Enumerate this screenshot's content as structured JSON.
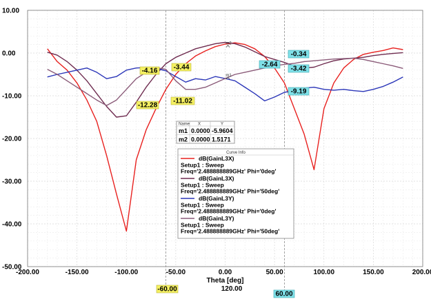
{
  "chart_data": {
    "type": "line",
    "xlabel": "Theta [deg]",
    "ylabel": "",
    "xlim": [
      -200,
      200
    ],
    "ylim": [
      -50,
      10
    ],
    "x_ticks": [
      "-200.00",
      "-150.00",
      "-100.00",
      "-50.00",
      "0.00",
      "50.00",
      "100.00",
      "150.00",
      "200.00"
    ],
    "y_ticks": [
      "10.00",
      "0.00",
      "-10.00",
      "-20.00",
      "-30.00",
      "-40.00",
      "-50.00"
    ],
    "grid": true,
    "series": [
      {
        "name": "dB(GainL3X)",
        "setup": "Setup1 : Sweep",
        "params": "Freq='2.488888889GHz' Phi='0deg'",
        "color": "#e8201e",
        "x": [
          -180,
          -170,
          -160,
          -150,
          -140,
          -130,
          -120,
          -110,
          -100,
          -90,
          -80,
          -70,
          -60,
          -50,
          -40,
          -30,
          -20,
          -10,
          0,
          10,
          20,
          30,
          40,
          50,
          60,
          70,
          80,
          90,
          100,
          110,
          120,
          130,
          140,
          150,
          160,
          170,
          180
        ],
        "values": [
          1,
          -2,
          -4,
          -7,
          -11,
          -16,
          -24,
          -33,
          -41.7,
          -25,
          -18,
          -13,
          -8.5,
          -5,
          -2.5,
          -0.7,
          0.5,
          1.5,
          2.1,
          2.4,
          2.0,
          1.0,
          -0.8,
          -3.5,
          -7,
          -13,
          -19,
          -27.3,
          -13,
          -7,
          -3.5,
          -1.5,
          -0.3,
          0.2,
          0.6,
          1.2,
          0.8
        ]
      },
      {
        "name": "dB(GainL3X)",
        "setup": "Setup1 : Sweep",
        "params": "Freq='2.488888889GHz' Phi='50deg'",
        "color": "#6e2b4f",
        "x": [
          -180,
          -170,
          -160,
          -150,
          -140,
          -130,
          -120,
          -110,
          -100,
          -90,
          -80,
          -70,
          -60,
          -50,
          -40,
          -30,
          -20,
          -10,
          0,
          10,
          20,
          30,
          40,
          50,
          60,
          70,
          80,
          90,
          100,
          110,
          120,
          130,
          140,
          150,
          160,
          170,
          180
        ],
        "values": [
          0.2,
          -0.5,
          -2,
          -4,
          -6.5,
          -9.5,
          -12.5,
          -15,
          -14.7,
          -11.5,
          -8,
          -5,
          -2.5,
          -1,
          0,
          1,
          1.6,
          2.2,
          2.5,
          2.2,
          1.4,
          0.3,
          -0.8,
          -1.5,
          -2.2,
          -3,
          -3.5,
          -3.3,
          -2.5,
          -1.8,
          -1.4,
          -1.2,
          -1.0,
          -0.6,
          -0.3,
          -0.1,
          0.1
        ]
      },
      {
        "name": "dB(GainL3Y)",
        "setup": "Setup1 : Sweep",
        "params": "Freq='2.488888889GHz' Phi='0deg'",
        "color": "#2a35b8",
        "x": [
          -180,
          -170,
          -160,
          -150,
          -140,
          -130,
          -120,
          -110,
          -100,
          -90,
          -80,
          -70,
          -60,
          -50,
          -40,
          -30,
          -20,
          -10,
          0,
          10,
          20,
          30,
          40,
          50,
          60,
          70,
          80,
          90,
          100,
          110,
          120,
          130,
          140,
          150,
          160,
          170,
          180
        ],
        "values": [
          -5.6,
          -5.0,
          -4.5,
          -4.0,
          -3.5,
          -4.5,
          -6,
          -5.5,
          -4,
          -3.5,
          -3.4,
          -3.6,
          -4.16,
          -5.5,
          -6.8,
          -6.0,
          -6.3,
          -5.5,
          -5.96,
          -6.5,
          -8,
          -9.5,
          -11.2,
          -10.3,
          -9.19,
          -8.8,
          -8.2,
          -8.0,
          -8.5,
          -8.7,
          -8.5,
          -8.8,
          -9.0,
          -8.5,
          -7.8,
          -6.8,
          -5.6
        ]
      },
      {
        "name": "dB(GainL3Y)",
        "setup": "Setup1 : Sweep",
        "params": "Freq='2.488888889GHz' Phi='50deg'",
        "color": "#8a5a78",
        "x": [
          -180,
          -170,
          -160,
          -150,
          -140,
          -130,
          -120,
          -110,
          -100,
          -90,
          -80,
          -70,
          -60,
          -50,
          -40,
          -30,
          -20,
          -10,
          0,
          10,
          20,
          30,
          40,
          50,
          60,
          70,
          80,
          90,
          100,
          110,
          120,
          130,
          140,
          150,
          160,
          170,
          180
        ],
        "values": [
          -3.8,
          -5,
          -6.5,
          -8,
          -9.5,
          -11,
          -12.28,
          -11,
          -8.5,
          -6,
          -4.5,
          -3.44,
          -3.8,
          -6.5,
          -8.5,
          -8.5,
          -8,
          -7,
          -5.96,
          -5,
          -4.5,
          -4,
          -3.5,
          -3,
          -2.64,
          -2.4,
          -2.0,
          -1.8,
          -1.6,
          -1.4,
          -1.3,
          -1.2,
          -1.5,
          -2,
          -2.5,
          -3,
          -3.6
        ]
      }
    ]
  },
  "markers_table": {
    "headers": [
      "Name",
      "X",
      "Y"
    ],
    "rows": [
      [
        "m1",
        "0.0000",
        "-5.9604"
      ],
      [
        "m2",
        "0.0000",
        "1.5171"
      ]
    ]
  },
  "point_markers": [
    {
      "name": "m1",
      "x": 0,
      "y": -5.9604
    },
    {
      "name": "m2",
      "x": 0,
      "y": 1.5171
    }
  ],
  "cursors": [
    {
      "x": -60,
      "label": "-60.00",
      "color": "#f5f062"
    },
    {
      "x": 60,
      "label": "60.00",
      "color": "#7fe0e8"
    }
  ],
  "cursor_delta": "120.00",
  "cursor_values_left": [
    {
      "y": -4.16,
      "label": "-4.16"
    },
    {
      "y": -3.44,
      "label": "-3.44"
    },
    {
      "y": -12.28,
      "label": "-12.28"
    },
    {
      "y": -11.02,
      "label": "-11.02"
    }
  ],
  "cursor_values_right": [
    {
      "y": -0.34,
      "label": "-0.34"
    },
    {
      "y": -2.64,
      "label": "-2.64"
    },
    {
      "y": -3.42,
      "label": "-3.42"
    },
    {
      "y": -9.19,
      "label": "-9.19"
    }
  ],
  "legend": {
    "title": "Curve Info"
  }
}
